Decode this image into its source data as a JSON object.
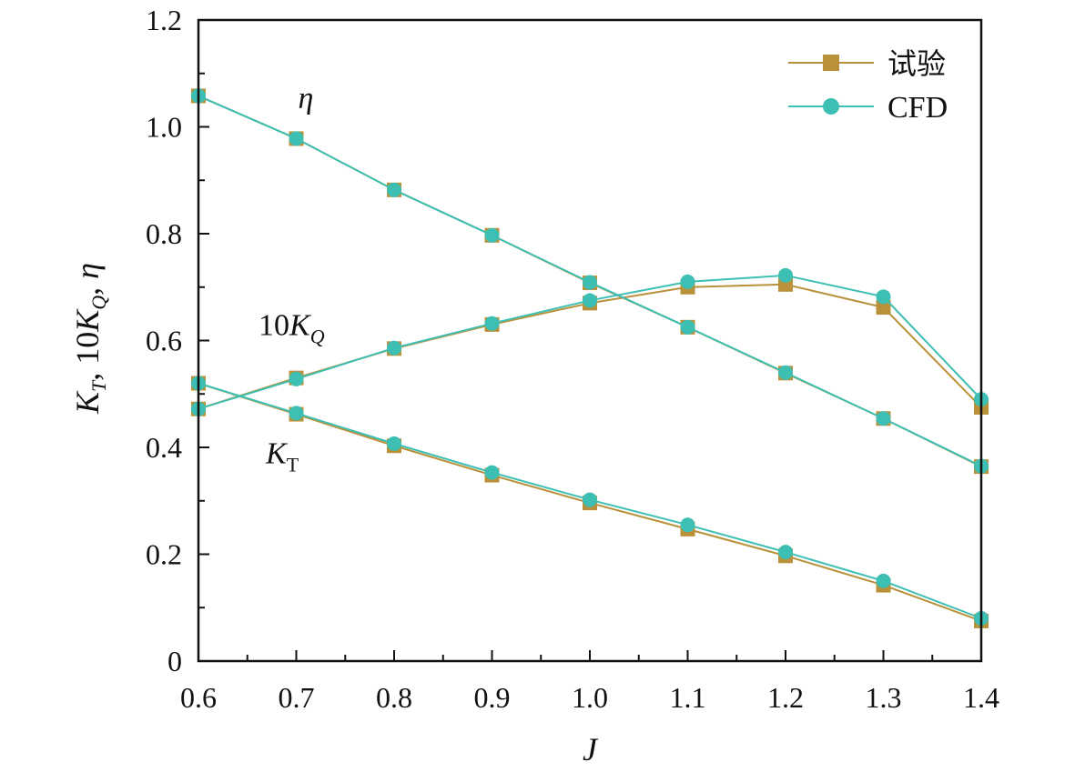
{
  "chart_data": {
    "type": "line",
    "title": "",
    "xlabel": "J",
    "ylabel_parts": {
      "k": "K",
      "t_sub": "T",
      "sep1": ", 10",
      "q_sub": "Q",
      "sep2": ", ",
      "eta": "η"
    },
    "xlim": [
      0.6,
      1.4
    ],
    "ylim": [
      0,
      1.2
    ],
    "x_ticks": [
      0.6,
      0.7,
      0.8,
      0.9,
      1.0,
      1.1,
      1.2,
      1.3,
      1.4
    ],
    "x_tick_labels": [
      "0.6",
      "0.7",
      "0.8",
      "0.9",
      "1.0",
      "1.1",
      "1.2",
      "1.3",
      "1.4"
    ],
    "y_ticks": [
      0,
      0.2,
      0.4,
      0.6,
      0.8,
      1.0,
      1.2
    ],
    "y_tick_labels": [
      "0",
      "0.2",
      "0.4",
      "0.6",
      "0.8",
      "1.0",
      "1.2"
    ],
    "x": [
      0.6,
      0.7,
      0.8,
      0.9,
      1.0,
      1.1,
      1.2,
      1.3,
      1.4
    ],
    "colors": {
      "experiment": "#B8913A",
      "cfd": "#3DBFB3"
    },
    "legend": {
      "position": "top-right",
      "entries": [
        {
          "name": "试验",
          "key": "experiment",
          "marker": "square"
        },
        {
          "name": "CFD",
          "key": "cfd",
          "marker": "circle"
        }
      ]
    },
    "series": [
      {
        "name": "试验",
        "curve": "eta",
        "values": [
          1.058,
          0.978,
          0.882,
          0.797,
          0.708,
          0.625,
          0.539,
          0.454,
          0.364
        ]
      },
      {
        "name": "CFD",
        "curve": "eta",
        "values": [
          1.058,
          0.978,
          0.882,
          0.797,
          0.709,
          0.625,
          0.54,
          0.454,
          0.365
        ]
      },
      {
        "name": "试验",
        "curve": "10KQ",
        "values": [
          0.472,
          0.53,
          0.585,
          0.63,
          0.67,
          0.7,
          0.705,
          0.662,
          0.475
        ]
      },
      {
        "name": "CFD",
        "curve": "10KQ",
        "values": [
          0.472,
          0.528,
          0.586,
          0.632,
          0.675,
          0.71,
          0.722,
          0.682,
          0.49
        ]
      },
      {
        "name": "试验",
        "curve": "KT",
        "values": [
          0.52,
          0.462,
          0.403,
          0.348,
          0.296,
          0.247,
          0.197,
          0.142,
          0.075
        ]
      },
      {
        "name": "CFD",
        "curve": "KT",
        "values": [
          0.52,
          0.464,
          0.407,
          0.353,
          0.302,
          0.255,
          0.204,
          0.15,
          0.08
        ]
      }
    ],
    "annotations": {
      "eta": {
        "text": "η",
        "x": 0.7,
        "y": 1.035
      },
      "kq": {
        "prefix": "10",
        "main": "K",
        "sub": "Q",
        "x": 0.68,
        "y": 0.61
      },
      "kt": {
        "main": "K",
        "sub": "T",
        "x": 0.68,
        "y": 0.37
      }
    }
  }
}
